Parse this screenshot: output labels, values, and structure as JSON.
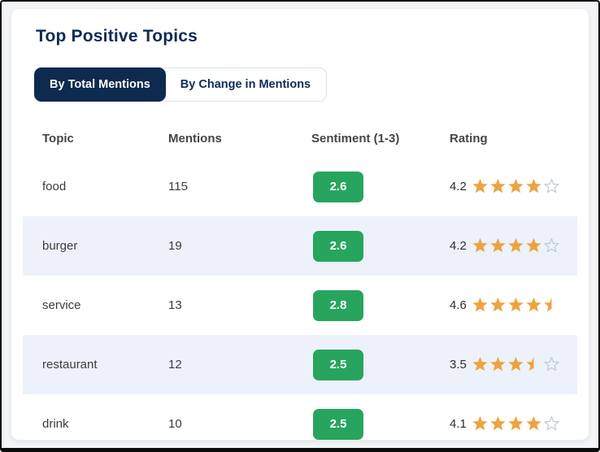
{
  "card": {
    "title": "Top Positive Topics"
  },
  "tabs": [
    {
      "label": "By Total Mentions",
      "active": true
    },
    {
      "label": "By Change in Mentions",
      "active": false
    }
  ],
  "table": {
    "headers": [
      "Topic",
      "Mentions",
      "Sentiment (1-3)",
      "Rating"
    ],
    "rows": [
      {
        "topic": "food",
        "mentions": "115",
        "sentiment": "2.6",
        "rating": "4.2",
        "stars": [
          "full",
          "full",
          "full",
          "full",
          "empty"
        ]
      },
      {
        "topic": "burger",
        "mentions": "19",
        "sentiment": "2.6",
        "rating": "4.2",
        "stars": [
          "full",
          "full",
          "full",
          "full",
          "empty"
        ]
      },
      {
        "topic": "service",
        "mentions": "13",
        "sentiment": "2.8",
        "rating": "4.6",
        "stars": [
          "full",
          "full",
          "full",
          "full",
          "half"
        ]
      },
      {
        "topic": "restaurant",
        "mentions": "12",
        "sentiment": "2.5",
        "rating": "3.5",
        "stars": [
          "full",
          "full",
          "full",
          "half",
          "empty"
        ]
      },
      {
        "topic": "drink",
        "mentions": "10",
        "sentiment": "2.5",
        "rating": "4.1",
        "stars": [
          "full",
          "full",
          "full",
          "full",
          "empty"
        ]
      }
    ]
  },
  "colors": {
    "navy": "#0e2b57",
    "navy-dark": "#0e2a4e",
    "green": "#27a55f",
    "star-orange": "#eda33f",
    "star-empty": "#c4cad1",
    "stripe": "#edf2fa",
    "page-bg": "#f2f4f7",
    "card-bg": "#ffffff",
    "tab-border": "#d7e1f3"
  }
}
